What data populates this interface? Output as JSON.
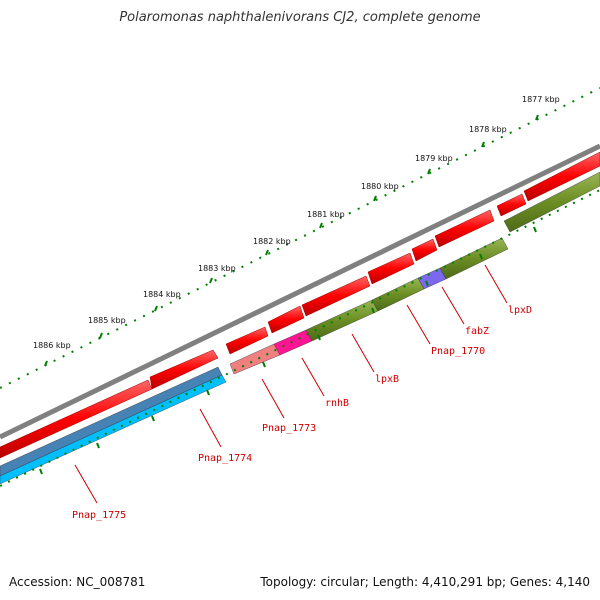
{
  "title": "Polaromonas naphthalenivorans CJ2, complete genome",
  "footer": {
    "accession": "Accession: NC_008781",
    "topology": "Topology: circular; Length: 4,410,291 bp; Genes: 4,140"
  },
  "ticks": [
    "1877 kbp",
    "1878 kbp",
    "1879 kbp",
    "1880 kbp",
    "1881 kbp",
    "1882 kbp",
    "1883 kbp",
    "1884 kbp",
    "1885 kbp",
    "1886 kbp"
  ],
  "genes": [
    "lpxD",
    "fabZ",
    "Pnap_1770",
    "lpxB",
    "rnhB",
    "Pnap_1773",
    "Pnap_1774",
    "Pnap_1775"
  ],
  "colors": {
    "backbone": "#808080",
    "forward_cds": "#ff0000",
    "olive": "#6b8e23",
    "blue": "#4682b4",
    "cyan": "#00bfff",
    "pink": "#ff1493",
    "salmon": "#f08080",
    "purple": "#7b68ee",
    "tick_green": "#008000",
    "label_red": "#cc0000"
  }
}
